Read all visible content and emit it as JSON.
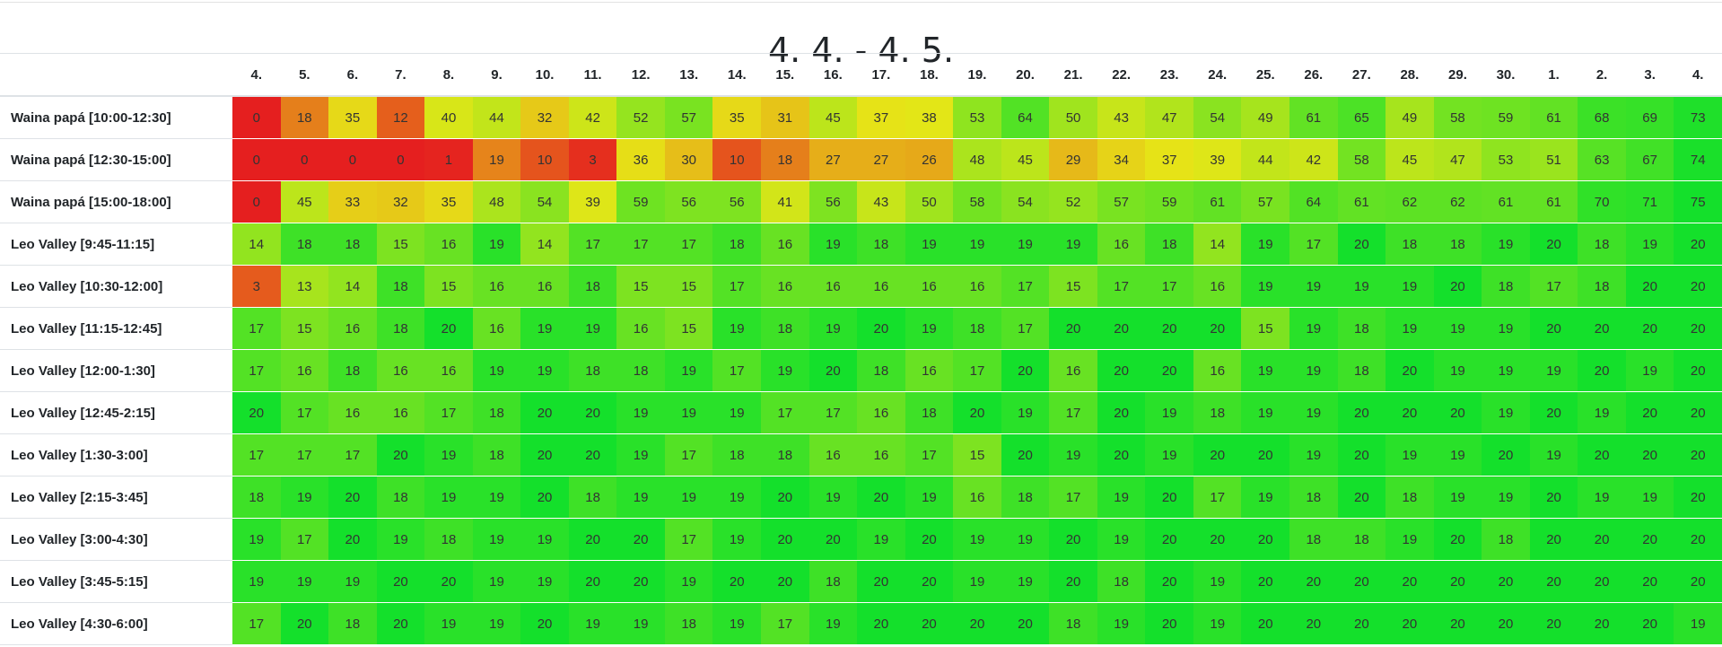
{
  "page": {
    "title": "4. 4. - 4. 5."
  },
  "colors": {
    "low": "#e51f1f",
    "mid": "#e6e617",
    "high": "#14e02b"
  },
  "chart_data": {
    "type": "heatmap",
    "title": "4. 4. - 4. 5.",
    "columns": [
      "4.",
      "5.",
      "6.",
      "7.",
      "8.",
      "9.",
      "10.",
      "11.",
      "12.",
      "13.",
      "14.",
      "15.",
      "16.",
      "17.",
      "18.",
      "19.",
      "20.",
      "21.",
      "22.",
      "23.",
      "24.",
      "25.",
      "26.",
      "27.",
      "28.",
      "29.",
      "30.",
      "1.",
      "2.",
      "3.",
      "4."
    ],
    "rows": [
      {
        "label": "Waina papá [10:00-12:30]",
        "max": 75,
        "values": [
          0,
          18,
          35,
          12,
          40,
          44,
          32,
          42,
          52,
          57,
          35,
          31,
          45,
          37,
          38,
          53,
          64,
          50,
          43,
          47,
          54,
          49,
          61,
          65,
          49,
          58,
          59,
          61,
          68,
          69,
          73
        ]
      },
      {
        "label": "Waina papá [12:30-15:00]",
        "max": 75,
        "values": [
          0,
          0,
          0,
          0,
          1,
          19,
          10,
          3,
          36,
          30,
          10,
          18,
          27,
          27,
          26,
          48,
          45,
          29,
          34,
          37,
          39,
          44,
          42,
          58,
          45,
          47,
          53,
          51,
          63,
          67,
          74
        ]
      },
      {
        "label": "Waina papá [15:00-18:00]",
        "max": 75,
        "values": [
          0,
          45,
          33,
          32,
          35,
          48,
          54,
          39,
          59,
          56,
          56,
          41,
          56,
          43,
          50,
          58,
          54,
          52,
          57,
          59,
          61,
          57,
          64,
          61,
          62,
          62,
          61,
          61,
          70,
          71,
          75
        ]
      },
      {
        "label": "Leo Valley [9:45-11:15]",
        "max": 20,
        "values": [
          14,
          18,
          18,
          15,
          16,
          19,
          14,
          17,
          17,
          17,
          18,
          16,
          19,
          18,
          19,
          19,
          19,
          19,
          16,
          18,
          14,
          19,
          17,
          20,
          18,
          18,
          19,
          20,
          18,
          19,
          20
        ]
      },
      {
        "label": "Leo Valley [10:30-12:00]",
        "max": 20,
        "values": [
          3,
          13,
          14,
          18,
          15,
          16,
          16,
          18,
          15,
          15,
          17,
          16,
          16,
          16,
          16,
          16,
          17,
          15,
          17,
          17,
          16,
          19,
          19,
          19,
          19,
          20,
          18,
          17,
          18,
          20,
          20
        ]
      },
      {
        "label": "Leo Valley [11:15-12:45]",
        "max": 20,
        "values": [
          17,
          15,
          16,
          18,
          20,
          16,
          19,
          19,
          16,
          15,
          19,
          18,
          19,
          20,
          19,
          18,
          17,
          20,
          20,
          20,
          20,
          15,
          19,
          18,
          19,
          19,
          19,
          20,
          20,
          20,
          20
        ]
      },
      {
        "label": "Leo Valley [12:00-1:30]",
        "max": 20,
        "values": [
          17,
          16,
          18,
          16,
          16,
          19,
          19,
          18,
          18,
          19,
          17,
          19,
          20,
          18,
          16,
          17,
          20,
          16,
          20,
          20,
          16,
          19,
          19,
          18,
          20,
          19,
          19,
          19,
          20,
          19,
          20
        ]
      },
      {
        "label": "Leo Valley [12:45-2:15]",
        "max": 20,
        "values": [
          20,
          17,
          16,
          16,
          17,
          18,
          20,
          20,
          19,
          19,
          19,
          17,
          17,
          16,
          18,
          20,
          19,
          17,
          20,
          19,
          18,
          19,
          19,
          20,
          20,
          20,
          19,
          20,
          19,
          20,
          20
        ]
      },
      {
        "label": "Leo Valley [1:30-3:00]",
        "max": 20,
        "values": [
          17,
          17,
          17,
          20,
          19,
          18,
          20,
          20,
          19,
          17,
          18,
          18,
          16,
          16,
          17,
          15,
          20,
          19,
          20,
          19,
          20,
          20,
          19,
          20,
          19,
          19,
          20,
          19,
          20,
          20,
          20
        ]
      },
      {
        "label": "Leo Valley [2:15-3:45]",
        "max": 20,
        "values": [
          18,
          19,
          20,
          18,
          19,
          19,
          20,
          18,
          19,
          19,
          19,
          20,
          19,
          20,
          19,
          16,
          18,
          17,
          19,
          20,
          17,
          19,
          18,
          20,
          18,
          19,
          19,
          20,
          19,
          19,
          20
        ]
      },
      {
        "label": "Leo Valley [3:00-4:30]",
        "max": 20,
        "values": [
          19,
          17,
          20,
          19,
          18,
          19,
          19,
          20,
          20,
          17,
          19,
          20,
          20,
          19,
          20,
          19,
          19,
          20,
          19,
          20,
          20,
          20,
          18,
          18,
          19,
          20,
          18,
          20,
          20,
          20,
          20
        ]
      },
      {
        "label": "Leo Valley [3:45-5:15]",
        "max": 20,
        "values": [
          19,
          19,
          19,
          20,
          20,
          19,
          19,
          20,
          20,
          19,
          20,
          20,
          18,
          20,
          20,
          19,
          19,
          20,
          18,
          20,
          19,
          20,
          20,
          20,
          20,
          20,
          20,
          20,
          20,
          20,
          20
        ]
      },
      {
        "label": "Leo Valley [4:30-6:00]",
        "max": 20,
        "values": [
          17,
          20,
          18,
          20,
          19,
          19,
          20,
          19,
          19,
          18,
          19,
          17,
          19,
          20,
          20,
          20,
          20,
          18,
          19,
          20,
          19,
          20,
          20,
          20,
          20,
          20,
          20,
          20,
          20,
          20,
          19
        ]
      }
    ]
  }
}
